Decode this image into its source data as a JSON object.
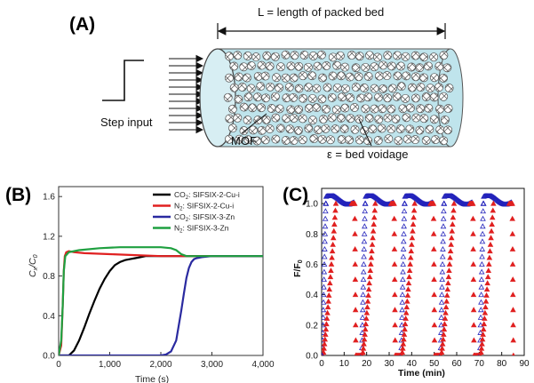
{
  "panel_a": {
    "letter": "(A)",
    "length_label": "L = length of packed bed",
    "step_label": "Step input",
    "mof_label": "MOF",
    "voidage_label": "ε = bed voidage"
  },
  "panel_b": {
    "letter": "(B)"
  },
  "panel_c": {
    "letter": "(C)"
  },
  "chart_data": [
    {
      "type": "line",
      "panel": "B",
      "xlabel": "Time (s)",
      "ylabel": "Cx/C0",
      "xlim": [
        0,
        4000
      ],
      "ylim": [
        0,
        1.7
      ],
      "xticks": [
        "0",
        "1,000",
        "2,000",
        "3,000",
        "4,000"
      ],
      "yticks": [
        "0.0",
        "0.4",
        "0.8",
        "1.2",
        "1.6"
      ],
      "legend_position": "top-right",
      "series": [
        {
          "name": "CO2: SIFSIX-2-Cu-i",
          "color": "#000000",
          "x": [
            0,
            200,
            300,
            400,
            500,
            600,
            700,
            800,
            900,
            1000,
            1100,
            1200,
            1300,
            1400,
            1500,
            1600,
            1700,
            1800,
            2000,
            2500,
            3000,
            3500,
            4000
          ],
          "y": [
            0,
            0,
            0.05,
            0.15,
            0.28,
            0.42,
            0.55,
            0.67,
            0.77,
            0.85,
            0.91,
            0.94,
            0.96,
            0.97,
            0.98,
            0.99,
            1.0,
            1.0,
            1.0,
            1.0,
            1.0,
            1.0,
            1.0
          ]
        },
        {
          "name": "N2: SIFSIX-2-Cu-i",
          "color": "#e02020",
          "x": [
            0,
            50,
            80,
            100,
            120,
            150,
            200,
            300,
            500,
            1000,
            1500,
            2000,
            2500,
            3000,
            3500,
            4000
          ],
          "y": [
            0,
            0.1,
            0.5,
            0.85,
            1.0,
            1.04,
            1.05,
            1.04,
            1.03,
            1.02,
            1.01,
            1.0,
            1.0,
            1.0,
            1.0,
            1.0
          ]
        },
        {
          "name": "CO2: SIFSIX-3-Zn",
          "color": "#2a2aa0",
          "x": [
            0,
            500,
            1000,
            1500,
            2000,
            2100,
            2200,
            2300,
            2400,
            2450,
            2500,
            2550,
            2600,
            2650,
            2700,
            2800,
            3000,
            3500,
            4000
          ],
          "y": [
            0,
            0,
            0,
            0,
            0,
            0.01,
            0.04,
            0.15,
            0.45,
            0.62,
            0.78,
            0.88,
            0.94,
            0.97,
            0.98,
            0.99,
            1.0,
            1.0,
            1.0
          ]
        },
        {
          "name": "N2: SIFSIX-3-Zn",
          "color": "#1fa040",
          "x": [
            0,
            50,
            80,
            100,
            130,
            200,
            400,
            800,
            1200,
            1600,
            2000,
            2200,
            2300,
            2400,
            2500,
            3000,
            3500,
            4000
          ],
          "y": [
            0,
            0.15,
            0.5,
            0.85,
            1.0,
            1.04,
            1.06,
            1.08,
            1.09,
            1.09,
            1.09,
            1.08,
            1.06,
            1.02,
            1.0,
            1.0,
            1.0,
            1.0
          ]
        }
      ]
    },
    {
      "type": "scatter",
      "panel": "C",
      "xlabel": "Time (min)",
      "ylabel": "F/F0",
      "xlim": [
        0,
        90
      ],
      "ylim": [
        0,
        1.1
      ],
      "xticks": [
        "0",
        "10",
        "20",
        "30",
        "40",
        "50",
        "60",
        "70",
        "80",
        "90"
      ],
      "yticks": [
        "0.0",
        "0.2",
        "0.4",
        "0.6",
        "0.8",
        "1.0"
      ],
      "cycles": 5,
      "cycle_start_min": [
        0,
        17.5,
        35,
        52.5,
        70
      ],
      "cycle_end_min": [
        14.5,
        32,
        49.5,
        67,
        84.5
      ],
      "series": [
        {
          "name": "",
          "marker": "open-triangle",
          "color": "#2222bb",
          "description_values": "fast breakthrough within ~1.5 min to 1.0, plateau ~1.03"
        },
        {
          "name": "",
          "marker": "filled-triangle",
          "color": "#e02020",
          "description_values": "slower breakthrough over ~5 min to 1.0"
        }
      ]
    }
  ]
}
